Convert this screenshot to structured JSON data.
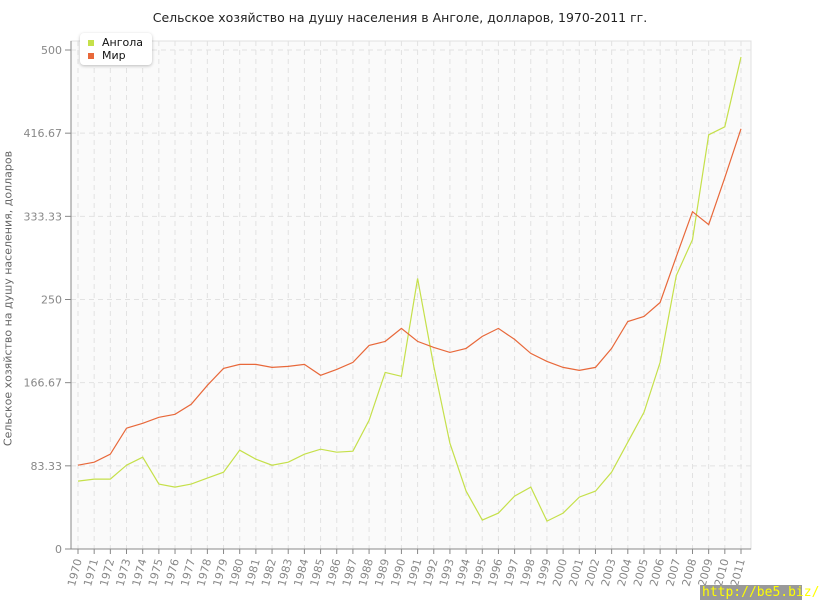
{
  "chart_data": {
    "type": "line",
    "title": "Сельское хозяйство на душу населения в Анголе, долларов, 1970-2011 гг.",
    "xlabel": "",
    "ylabel": "Сельское хозяйство на душу населения, долларов",
    "ylim": [
      0,
      500
    ],
    "yticks": [
      "0",
      "83.33",
      "166.67",
      "250",
      "333.33",
      "416.67",
      "500"
    ],
    "grid": true,
    "legend_position": "top-left",
    "x": [
      1970,
      1971,
      1972,
      1973,
      1974,
      1975,
      1976,
      1977,
      1978,
      1979,
      1980,
      1981,
      1982,
      1983,
      1984,
      1985,
      1986,
      1987,
      1988,
      1989,
      1990,
      1991,
      1992,
      1993,
      1994,
      1995,
      1996,
      1997,
      1998,
      1999,
      2000,
      2001,
      2002,
      2003,
      2004,
      2005,
      2006,
      2007,
      2008,
      2009,
      2010,
      2011
    ],
    "series": [
      {
        "name": "Ангола",
        "color": "#c5e04a",
        "values": [
          68,
          70,
          70,
          84,
          92,
          65,
          62,
          65,
          71,
          77,
          99,
          90,
          84,
          87,
          95,
          100,
          97,
          98,
          129,
          177,
          173,
          271,
          183,
          106,
          58,
          29,
          36,
          53,
          62,
          28,
          36,
          52,
          58,
          77,
          107,
          137,
          187,
          274,
          310,
          415,
          423,
          493
        ]
      },
      {
        "name": "Мир",
        "color": "#e8683a",
        "values": [
          84,
          87,
          95,
          121,
          126,
          132,
          135,
          145,
          164,
          181,
          185,
          185,
          182,
          183,
          185,
          174,
          180,
          187,
          204,
          208,
          221,
          208,
          202,
          197,
          201,
          213,
          221,
          210,
          196,
          188,
          182,
          179,
          182,
          201,
          228,
          233,
          247,
          293,
          338,
          325,
          372,
          421
        ]
      }
    ]
  },
  "watermark": "http://be5.biz/"
}
